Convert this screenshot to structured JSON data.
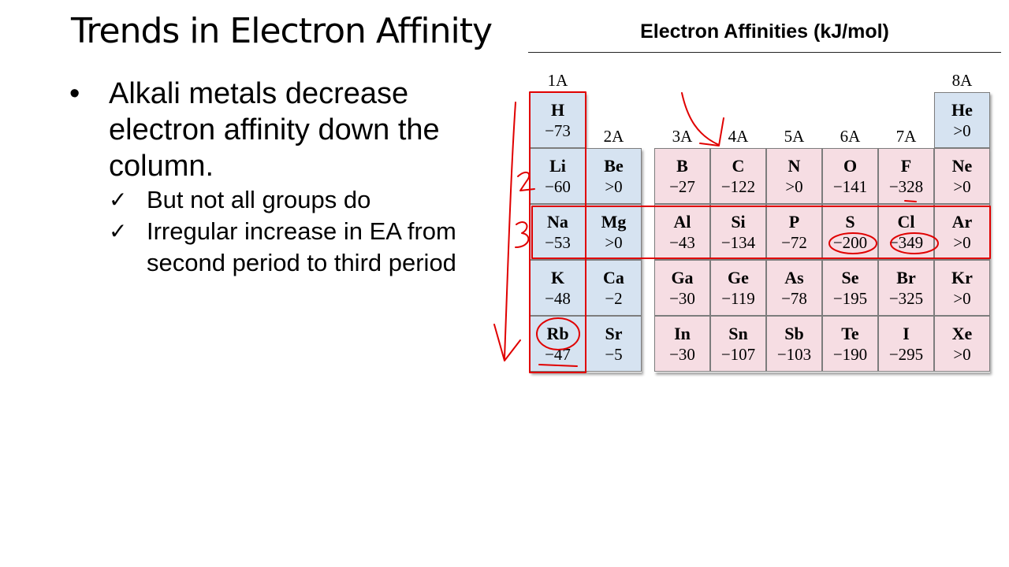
{
  "slide": {
    "title": "Trends in Electron Affinity",
    "bullet_symbol": "•",
    "check_symbol": "✓",
    "bullet": "Alkali metals decrease electron affinity down the column.",
    "subbullets": [
      "But not all groups do",
      "Irregular increase in EA from second period to third period"
    ]
  },
  "table": {
    "title": "Electron Affinities (kJ/mol)",
    "group_labels": [
      "1A",
      "2A",
      "3A",
      "4A",
      "5A",
      "6A",
      "7A",
      "8A"
    ],
    "rows": [
      [
        {
          "sym": "H",
          "val": "−73"
        },
        null,
        null,
        null,
        null,
        null,
        null,
        {
          "sym": "He",
          "val": ">0"
        }
      ],
      [
        {
          "sym": "Li",
          "val": "−60"
        },
        {
          "sym": "Be",
          "val": ">0"
        },
        {
          "sym": "B",
          "val": "−27"
        },
        {
          "sym": "C",
          "val": "−122"
        },
        {
          "sym": "N",
          "val": ">0"
        },
        {
          "sym": "O",
          "val": "−141"
        },
        {
          "sym": "F",
          "val": "−328"
        },
        {
          "sym": "Ne",
          "val": ">0"
        }
      ],
      [
        {
          "sym": "Na",
          "val": "−53"
        },
        {
          "sym": "Mg",
          "val": ">0"
        },
        {
          "sym": "Al",
          "val": "−43"
        },
        {
          "sym": "Si",
          "val": "−134"
        },
        {
          "sym": "P",
          "val": "−72"
        },
        {
          "sym": "S",
          "val": "−200"
        },
        {
          "sym": "Cl",
          "val": "−349"
        },
        {
          "sym": "Ar",
          "val": ">0"
        }
      ],
      [
        {
          "sym": "K",
          "val": "−48"
        },
        {
          "sym": "Ca",
          "val": "−2"
        },
        {
          "sym": "Ga",
          "val": "−30"
        },
        {
          "sym": "Ge",
          "val": "−119"
        },
        {
          "sym": "As",
          "val": "−78"
        },
        {
          "sym": "Se",
          "val": "−195"
        },
        {
          "sym": "Br",
          "val": "−325"
        },
        {
          "sym": "Kr",
          "val": ">0"
        }
      ],
      [
        {
          "sym": "Rb",
          "val": "−47"
        },
        {
          "sym": "Sr",
          "val": "−5"
        },
        {
          "sym": "In",
          "val": "−30"
        },
        {
          "sym": "Sn",
          "val": "−107"
        },
        {
          "sym": "Sb",
          "val": "−103"
        },
        {
          "sym": "Te",
          "val": "−190"
        },
        {
          "sym": "I",
          "val": "−295"
        },
        {
          "sym": "Xe",
          "val": ">0"
        }
      ]
    ],
    "colors": {
      "s_block": "#d6e3f1",
      "p_block": "#f6dde3",
      "annotation": "#e00000"
    },
    "annotations": {
      "period_2_label": "2",
      "period_3_label": "3"
    }
  }
}
